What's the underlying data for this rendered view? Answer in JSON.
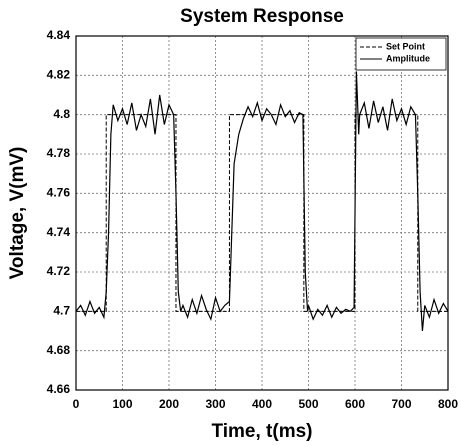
{
  "chart_data": {
    "type": "line",
    "title": "System Response",
    "x_label": "Time, t(ms)",
    "y_label": "Voltage, V(mV)",
    "xlim": [
      0,
      800
    ],
    "xticks": [
      0,
      100,
      200,
      300,
      400,
      500,
      600,
      700,
      800
    ],
    "ylim": [
      4.66,
      4.84
    ],
    "yticks": [
      4.66,
      4.68,
      4.7,
      4.72,
      4.74,
      4.76,
      4.78,
      4.8,
      4.82,
      4.84
    ],
    "grid": true,
    "legend": "upper right",
    "series": [
      {
        "name": "Set Point",
        "color": "#000000",
        "dashed": true,
        "x": [
          0,
          65,
          65,
          215,
          215,
          330,
          330,
          490,
          490,
          600,
          600,
          735,
          735,
          800
        ],
        "values": [
          4.7,
          4.7,
          4.8,
          4.8,
          4.7,
          4.7,
          4.8,
          4.8,
          4.7,
          4.7,
          4.8,
          4.8,
          4.7,
          4.7
        ]
      },
      {
        "name": "Amplitude",
        "color": "#000000",
        "dashed": false,
        "x": [
          0,
          10,
          20,
          30,
          40,
          50,
          60,
          65,
          70,
          75,
          80,
          90,
          100,
          110,
          120,
          130,
          140,
          150,
          160,
          170,
          180,
          190,
          200,
          210,
          215,
          220,
          225,
          230,
          240,
          250,
          260,
          270,
          280,
          290,
          300,
          310,
          320,
          330,
          335,
          340,
          350,
          360,
          370,
          380,
          390,
          400,
          410,
          420,
          430,
          440,
          450,
          460,
          470,
          480,
          488,
          493,
          498,
          500,
          510,
          520,
          530,
          540,
          550,
          560,
          570,
          580,
          590,
          598,
          603,
          608,
          610,
          620,
          630,
          640,
          650,
          660,
          670,
          680,
          690,
          700,
          710,
          720,
          730,
          735,
          740,
          745,
          750,
          760,
          770,
          780,
          790,
          800
        ],
        "values": [
          4.7,
          4.703,
          4.698,
          4.705,
          4.699,
          4.702,
          4.697,
          4.71,
          4.74,
          4.79,
          4.805,
          4.797,
          4.803,
          4.795,
          4.806,
          4.792,
          4.8,
          4.794,
          4.808,
          4.79,
          4.81,
          4.795,
          4.805,
          4.8,
          4.76,
          4.71,
          4.7,
          4.703,
          4.697,
          4.706,
          4.699,
          4.708,
          4.701,
          4.696,
          4.707,
          4.7,
          4.703,
          4.705,
          4.74,
          4.775,
          4.79,
          4.798,
          4.804,
          4.799,
          4.806,
          4.797,
          4.803,
          4.8,
          4.795,
          4.805,
          4.799,
          4.802,
          4.796,
          4.801,
          4.8,
          4.72,
          4.7,
          4.703,
          4.696,
          4.701,
          4.698,
          4.703,
          4.697,
          4.702,
          4.699,
          4.701,
          4.7,
          4.702,
          4.822,
          4.79,
          4.8,
          4.806,
          4.793,
          4.807,
          4.796,
          4.804,
          4.792,
          4.808,
          4.797,
          4.803,
          4.795,
          4.804,
          4.8,
          4.76,
          4.71,
          4.69,
          4.703,
          4.697,
          4.706,
          4.699,
          4.704,
          4.7
        ]
      }
    ]
  }
}
